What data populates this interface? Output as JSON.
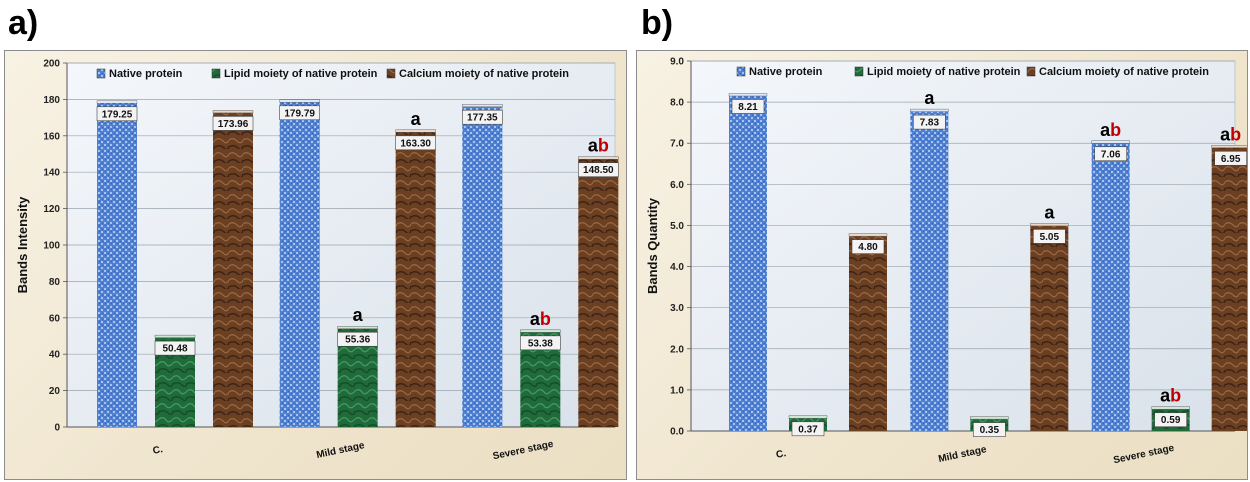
{
  "panels": [
    {
      "letter": "a)"
    },
    {
      "letter": "b)"
    }
  ],
  "colors": {
    "native": "#4f7fd0",
    "lipid": "#1f6b3a",
    "calcium": "#6b3f22",
    "sig_a": "#000000",
    "sig_b": "#c00000"
  },
  "chart_data": [
    {
      "type": "bar",
      "title": "",
      "xlabel": "",
      "ylabel": "Bands Intensity",
      "ylim": [
        0,
        200
      ],
      "ytick_step": 20,
      "ytick_decimals": 0,
      "value_decimals": 2,
      "grid": true,
      "legend_position": "top",
      "categories": [
        "C.",
        "Mild stage",
        "Severe stage"
      ],
      "series": [
        {
          "name": "Native protein",
          "values": [
            179.25,
            179.79,
            177.35
          ],
          "sig": [
            "",
            "",
            ""
          ]
        },
        {
          "name": "Lipid moiety of native protein",
          "values": [
            50.48,
            55.36,
            53.38
          ],
          "sig": [
            "",
            "a",
            "ab"
          ]
        },
        {
          "name": "Calcium moiety of native protein",
          "values": [
            173.96,
            163.3,
            148.5
          ],
          "sig": [
            "",
            "a",
            "ab"
          ]
        }
      ]
    },
    {
      "type": "bar",
      "title": "",
      "xlabel": "",
      "ylabel": "Bands Quantity",
      "ylim": [
        0,
        9
      ],
      "ytick_step": 1,
      "ytick_decimals": 1,
      "value_decimals": 2,
      "grid": true,
      "legend_position": "top",
      "categories": [
        "C.",
        "Mild stage",
        "Severe stage"
      ],
      "series": [
        {
          "name": "Native protein",
          "values": [
            8.21,
            7.83,
            7.06
          ],
          "sig": [
            "",
            "a",
            "ab"
          ]
        },
        {
          "name": "Lipid moiety of native protein",
          "values": [
            0.37,
            0.35,
            0.59
          ],
          "sig": [
            "",
            "",
            "ab"
          ]
        },
        {
          "name": "Calcium moiety of native protein",
          "values": [
            4.8,
            5.05,
            6.95
          ],
          "sig": [
            "",
            "a",
            "ab"
          ]
        }
      ]
    }
  ]
}
